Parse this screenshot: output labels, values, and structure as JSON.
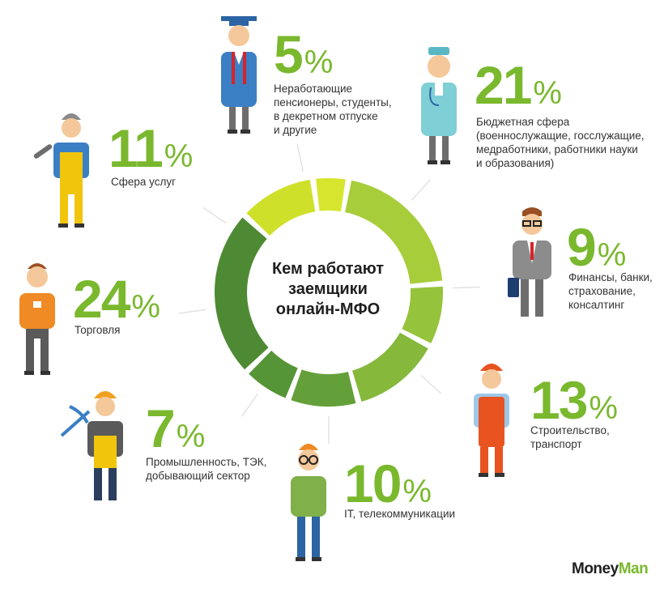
{
  "center_title": "Кем работают\nзаемщики\nонлайн-МФО",
  "brand": {
    "part1": "Money",
    "part2": "Man"
  },
  "colors": {
    "accent": "#7ab82e"
  },
  "chart_data": {
    "type": "pie",
    "donut": true,
    "unit": "%",
    "slices": [
      {
        "value": 21,
        "label": "Бюджетная сфера\n(военнослужащие, госслужащие,\nмедработники, работники науки\nи образования)",
        "color": "#a8cd3a",
        "icon": "doctor-icon"
      },
      {
        "value": 9,
        "label": "Финансы, банки,\nстрахование,\nконсалтинг",
        "color": "#96c33c",
        "icon": "businessman-icon"
      },
      {
        "value": 13,
        "label": "Строительство,\nтранспорт",
        "color": "#86b83c",
        "icon": "construction-worker-icon"
      },
      {
        "value": 10,
        "label": "IT, телекоммуникации",
        "color": "#64a03a",
        "icon": "it-worker-icon"
      },
      {
        "value": 7,
        "label": "Промышленность, ТЭК,\nдобывающий сектор",
        "color": "#569438",
        "icon": "miner-icon"
      },
      {
        "value": 24,
        "label": "Торговля",
        "color": "#4e8a34",
        "icon": "sales-clerk-icon"
      },
      {
        "value": 11,
        "label": "Сфера услуг",
        "color": "#cfe02a",
        "icon": "repairman-icon"
      },
      {
        "value": 5,
        "label": "Неработающие\nпенсионеры, студенты,\nв декретном отпуске\nи другие",
        "color": "#d8e52e",
        "icon": "graduate-icon"
      }
    ]
  }
}
